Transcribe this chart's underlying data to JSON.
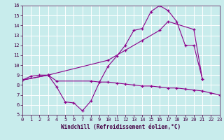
{
  "xlabel": "Windchill (Refroidissement éolien,°C)",
  "bg_color": "#c8ecec",
  "line_color": "#8b008b",
  "grid_color": "#ffffff",
  "xmin": 0,
  "xmax": 23,
  "ymin": 5,
  "ymax": 16,
  "lines": [
    {
      "x": [
        0,
        1,
        2,
        3,
        4,
        5,
        6,
        7,
        8,
        9,
        10,
        11,
        12,
        13,
        14,
        15,
        16,
        17,
        18,
        19,
        20,
        21
      ],
      "y": [
        8.5,
        8.9,
        9.0,
        9.0,
        7.8,
        6.3,
        6.2,
        5.4,
        6.4,
        8.3,
        9.9,
        10.9,
        12.0,
        13.5,
        13.7,
        15.4,
        16.0,
        15.5,
        14.4,
        12.0,
        12.0,
        8.6
      ]
    },
    {
      "x": [
        0,
        3,
        10,
        12,
        14,
        16,
        17,
        20,
        21
      ],
      "y": [
        8.5,
        9.0,
        10.5,
        11.5,
        12.5,
        13.5,
        14.4,
        13.6,
        8.6
      ]
    },
    {
      "x": [
        0,
        3,
        4,
        8,
        9,
        10,
        11,
        12,
        13,
        14,
        15,
        16,
        17,
        18,
        19,
        20,
        21,
        22,
        23
      ],
      "y": [
        8.5,
        9.0,
        8.4,
        8.4,
        8.3,
        8.3,
        8.2,
        8.1,
        8.0,
        7.9,
        7.9,
        7.8,
        7.7,
        7.7,
        7.6,
        7.5,
        7.4,
        7.2,
        7.0
      ]
    }
  ]
}
